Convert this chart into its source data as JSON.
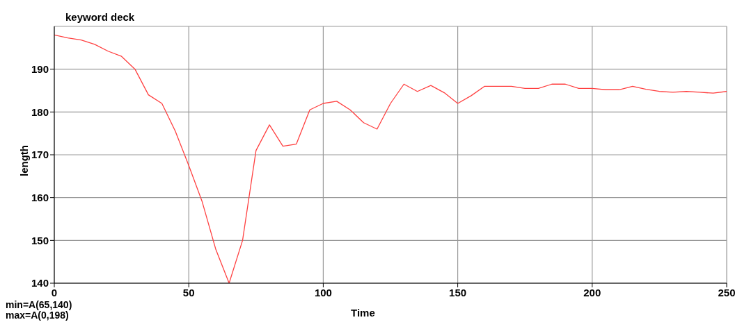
{
  "chart_data": {
    "type": "line",
    "title": "keyword deck",
    "xlabel": "Time",
    "ylabel": "length",
    "x": [
      0,
      5,
      10,
      15,
      20,
      25,
      30,
      35,
      40,
      45,
      50,
      55,
      60,
      65,
      70,
      75,
      80,
      85,
      90,
      95,
      100,
      105,
      110,
      115,
      120,
      125,
      130,
      135,
      140,
      145,
      150,
      155,
      160,
      165,
      170,
      175,
      180,
      185,
      190,
      195,
      200,
      205,
      210,
      215,
      220,
      225,
      230,
      235,
      240,
      245,
      250
    ],
    "series": [
      {
        "color": "#ff4040",
        "values": [
          198,
          197.3,
          196.8,
          195.8,
          194.2,
          193,
          190,
          184,
          182,
          175.5,
          167.5,
          159,
          148,
          140,
          150,
          171,
          177,
          172,
          172.5,
          180.5,
          182,
          182.5,
          180.5,
          177.5,
          176,
          182,
          186.5,
          184.8,
          186.2,
          184.5,
          182,
          183.8,
          186,
          186,
          186,
          185.5,
          185.5,
          186.5,
          186.5,
          185.5,
          185.5,
          185.2,
          185.2,
          186,
          185.3,
          184.8,
          184.6,
          184.8,
          184.6,
          184.4,
          184.8
        ]
      }
    ],
    "xlim": [
      0,
      250
    ],
    "xticks": [
      0,
      50,
      100,
      150,
      200,
      250
    ],
    "ylim": [
      140,
      200
    ],
    "yticks": [
      140,
      150,
      160,
      170,
      180,
      190
    ],
    "grid": true,
    "marker": "none",
    "line_style": "solid",
    "annotations": [
      "min=A(65,140)",
      "max=A(0,198)"
    ]
  }
}
